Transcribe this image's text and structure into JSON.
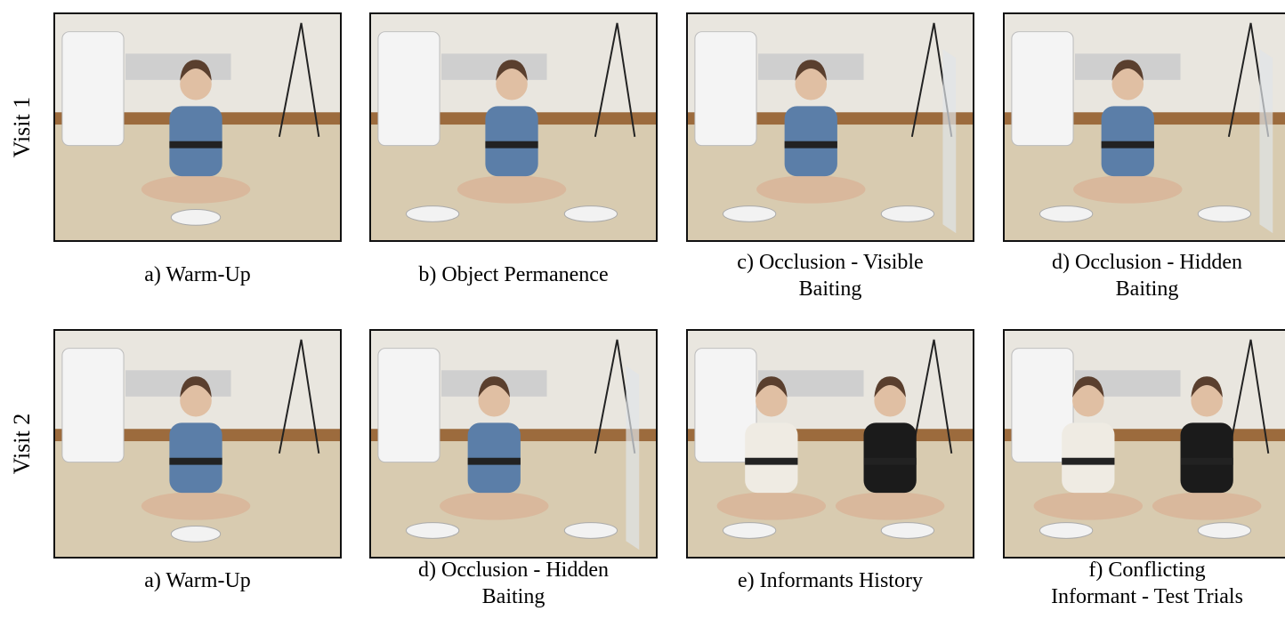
{
  "rows": [
    {
      "label": "Visit 1",
      "panels": [
        {
          "caption": [
            "a) Warm-Up"
          ]
        },
        {
          "caption": [
            "b) Object Permanence"
          ]
        },
        {
          "caption": [
            "c) Occlusion - Visible",
            "Baiting"
          ]
        },
        {
          "caption": [
            "d) Occlusion - Hidden",
            "Baiting"
          ]
        }
      ]
    },
    {
      "label": "Visit 2",
      "panels": [
        {
          "caption": [
            "a) Warm-Up"
          ]
        },
        {
          "caption": [
            "d) Occlusion - Hidden",
            "Baiting"
          ]
        },
        {
          "caption": [
            "e) Informants History"
          ]
        },
        {
          "caption": [
            "f) Conflicting",
            "Informant - Test Trials"
          ]
        }
      ]
    }
  ]
}
